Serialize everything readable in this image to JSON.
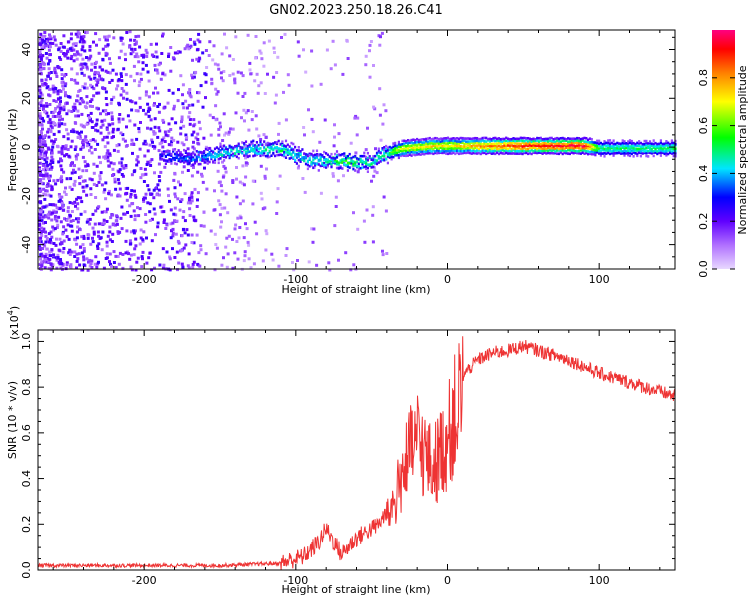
{
  "title": "GN02.2023.250.18.26.C41",
  "chart_data": [
    {
      "type": "heatmap",
      "xlabel": "Height of straight line (km)",
      "ylabel": "Frequency (Hz)",
      "xlim": [
        -270,
        150
      ],
      "ylim": [
        -50,
        48
      ],
      "x_ticks": [
        -200,
        -100,
        0,
        100
      ],
      "y_ticks": [
        -40,
        -20,
        0,
        20,
        40
      ],
      "colorbar": {
        "label": "Normalized spectral amplitude",
        "range": [
          0,
          1
        ],
        "ticks": [
          0.0,
          0.2,
          0.4,
          0.6,
          0.8
        ],
        "colormap": [
          "#e8d8ff",
          "#7a00ff",
          "#0000ff",
          "#00e5ff",
          "#00ff00",
          "#ffff00",
          "#ff8000",
          "#ff0000",
          "#ff0080"
        ]
      },
      "ridge": {
        "x": [
          -190,
          -170,
          -150,
          -130,
          -110,
          -100,
          -90,
          -70,
          -50,
          -45,
          -30,
          -10,
          0,
          20,
          50,
          90,
          100,
          130,
          150
        ],
        "y": [
          -3,
          -4,
          -2,
          0,
          0,
          -3,
          -5,
          -5,
          -6,
          -3,
          0,
          1,
          1,
          1,
          1,
          1,
          0,
          0,
          0
        ],
        "amplitude": [
          0.3,
          0.35,
          0.45,
          0.45,
          0.5,
          0.45,
          0.45,
          0.55,
          0.5,
          0.45,
          0.7,
          0.75,
          0.7,
          0.8,
          0.9,
          0.95,
          0.5,
          0.5,
          0.5
        ]
      }
    },
    {
      "type": "line",
      "xlabel": "Height of straight line (km)",
      "ylabel": "SNR (10 * v/v)",
      "y_multiplier": "(x10",
      "y_multiplier_exp": "4",
      "y_multiplier_close": ")",
      "xlim": [
        -270,
        150
      ],
      "ylim": [
        0,
        1.05
      ],
      "x_ticks": [
        -200,
        -100,
        0,
        100
      ],
      "y_ticks": [
        0.0,
        0.2,
        0.4,
        0.6,
        0.8,
        1.0
      ],
      "series": [
        {
          "color": "#ee3333",
          "x": [
            -270,
            -200,
            -150,
            -110,
            -95,
            -85,
            -80,
            -70,
            -60,
            -45,
            -35,
            -28,
            -20,
            -10,
            0,
            10,
            20,
            30,
            40,
            50,
            60,
            80,
            100,
            120,
            150
          ],
          "y": [
            0.02,
            0.02,
            0.02,
            0.03,
            0.06,
            0.12,
            0.18,
            0.07,
            0.14,
            0.2,
            0.32,
            0.5,
            0.62,
            0.48,
            0.62,
            0.85,
            0.92,
            0.95,
            0.96,
            0.98,
            0.96,
            0.92,
            0.86,
            0.82,
            0.76
          ]
        }
      ]
    }
  ]
}
